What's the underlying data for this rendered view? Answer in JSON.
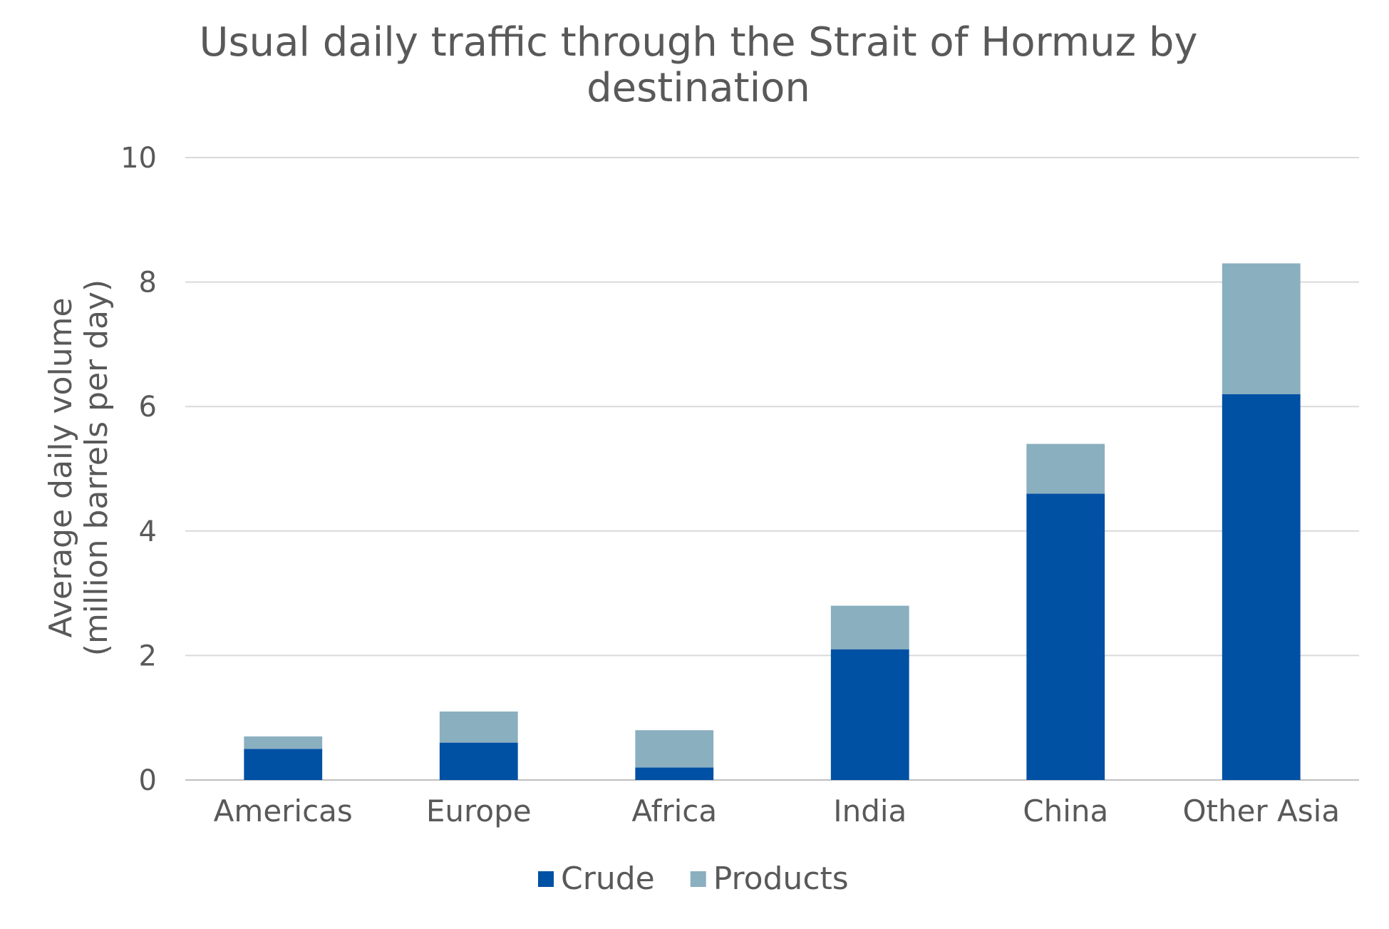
{
  "chart_data": {
    "type": "bar",
    "stacked": true,
    "title": "Usual daily traffic through the Strait of Hormuz by destination",
    "title_lines": [
      "Usual daily traffic through the Strait of Hormuz by",
      "destination"
    ],
    "xlabel": "",
    "ylabel_lines": [
      "Average daily volume",
      "(million barrels per day)"
    ],
    "ylim": [
      0,
      10
    ],
    "yticks": [
      0,
      2,
      4,
      6,
      8,
      10
    ],
    "grid": true,
    "legend_position": "bottom",
    "categories": [
      "Americas",
      "Europe",
      "Africa",
      "India",
      "China",
      "Other Asia"
    ],
    "series": [
      {
        "name": "Crude",
        "color": "#0050A4",
        "values": [
          0.5,
          0.6,
          0.2,
          2.1,
          4.6,
          6.2
        ]
      },
      {
        "name": "Products",
        "color": "#8AAFBF",
        "values": [
          0.2,
          0.5,
          0.6,
          0.7,
          0.8,
          2.1
        ]
      }
    ]
  }
}
